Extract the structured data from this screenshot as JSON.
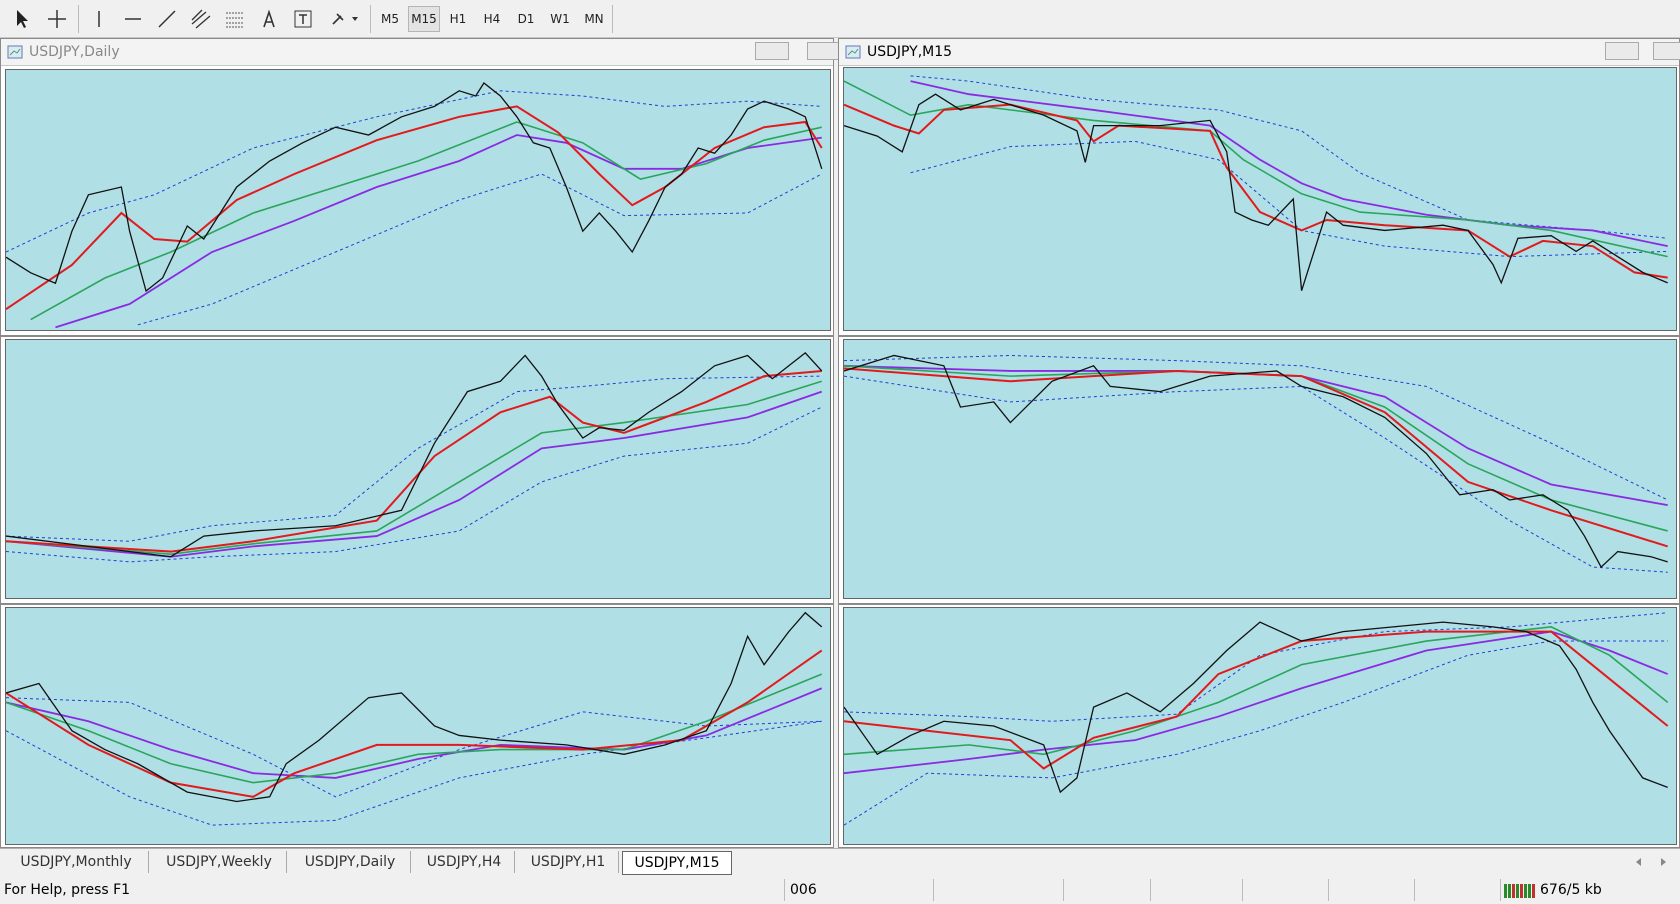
{
  "toolbar": {
    "timeframes": [
      "M5",
      "M15",
      "H1",
      "H4",
      "D1",
      "W1",
      "MN"
    ],
    "active": "M15"
  },
  "windows": [
    {
      "title": "USDJPY,Daily"
    },
    {
      "title": "USDJPY,M15"
    }
  ],
  "tabs": [
    "USDJPY,Monthly",
    "USDJPY,Weekly",
    "USDJPY,Daily",
    "USDJPY,H4",
    "USDJPY,H1",
    "USDJPY,M15"
  ],
  "active_tab": "USDJPY,M15",
  "status": {
    "help": "For Help, press F1",
    "profile": "006",
    "traffic": "676/5 kb"
  }
}
